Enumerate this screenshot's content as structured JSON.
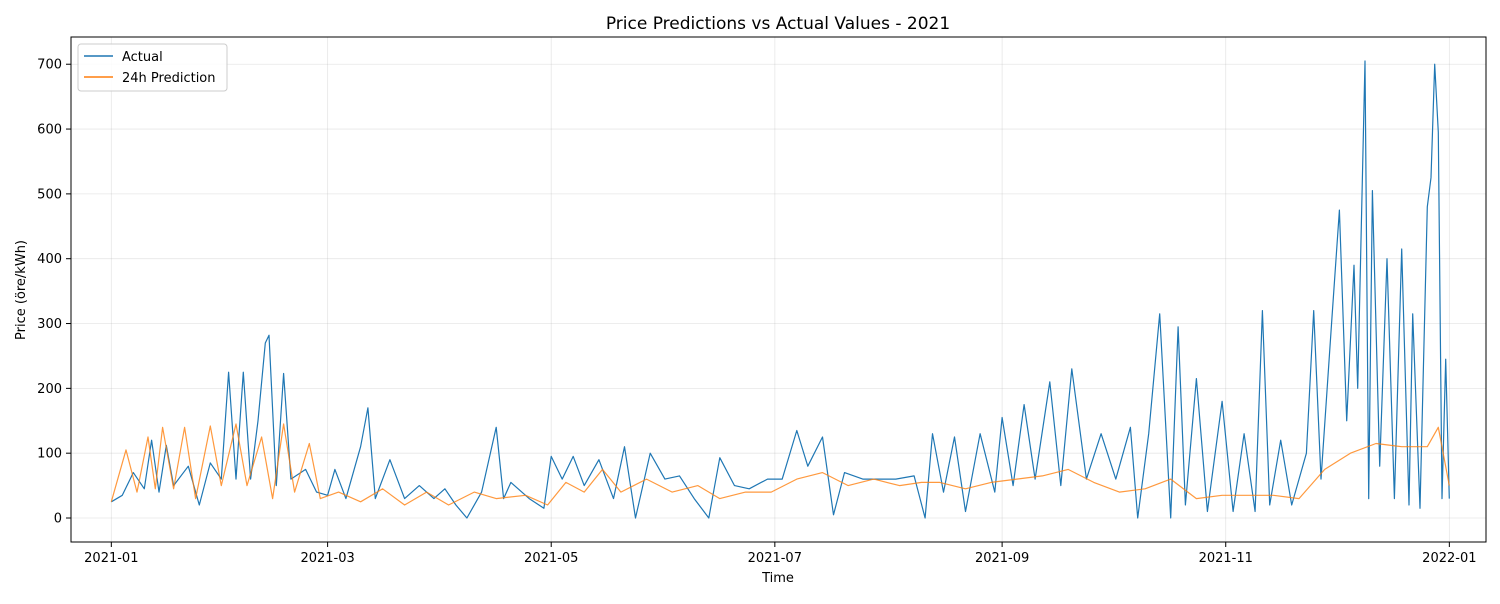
{
  "chart_data": {
    "type": "line",
    "title": "Price Predictions vs Actual Values - 2021",
    "xlabel": "Time",
    "ylabel": "Price (öre/kWh)",
    "x_range": [
      "2020-12-21",
      "2022-01-11"
    ],
    "ylim": [
      -37,
      742
    ],
    "x_ticks": [
      "2021-01",
      "2021-03",
      "2021-05",
      "2021-07",
      "2021-09",
      "2021-11",
      "2022-01"
    ],
    "y_ticks": [
      0,
      100,
      200,
      300,
      400,
      500,
      600,
      700
    ],
    "grid": true,
    "legend_position": "top-left",
    "series": [
      {
        "name": "Actual",
        "color": "#1f77b4",
        "points": [
          [
            "2021-01-01",
            25
          ],
          [
            "2021-01-04",
            35
          ],
          [
            "2021-01-07",
            70
          ],
          [
            "2021-01-10",
            45
          ],
          [
            "2021-01-12",
            120
          ],
          [
            "2021-01-14",
            40
          ],
          [
            "2021-01-16",
            112
          ],
          [
            "2021-01-18",
            50
          ],
          [
            "2021-01-22",
            80
          ],
          [
            "2021-01-25",
            20
          ],
          [
            "2021-01-28",
            85
          ],
          [
            "2021-01-31",
            60
          ],
          [
            "2021-02-02",
            225
          ],
          [
            "2021-02-04",
            60
          ],
          [
            "2021-02-06",
            225
          ],
          [
            "2021-02-08",
            60
          ],
          [
            "2021-02-10",
            150
          ],
          [
            "2021-02-12",
            270
          ],
          [
            "2021-02-13",
            282
          ],
          [
            "2021-02-15",
            50
          ],
          [
            "2021-02-17",
            223
          ],
          [
            "2021-02-19",
            60
          ],
          [
            "2021-02-23",
            75
          ],
          [
            "2021-02-26",
            40
          ],
          [
            "2021-03-01",
            35
          ],
          [
            "2021-03-03",
            75
          ],
          [
            "2021-03-06",
            30
          ],
          [
            "2021-03-10",
            110
          ],
          [
            "2021-03-12",
            170
          ],
          [
            "2021-03-14",
            30
          ],
          [
            "2021-03-18",
            90
          ],
          [
            "2021-03-22",
            30
          ],
          [
            "2021-03-26",
            50
          ],
          [
            "2021-03-30",
            30
          ],
          [
            "2021-04-02",
            45
          ],
          [
            "2021-04-05",
            20
          ],
          [
            "2021-04-08",
            0
          ],
          [
            "2021-04-12",
            40
          ],
          [
            "2021-04-16",
            140
          ],
          [
            "2021-04-18",
            30
          ],
          [
            "2021-04-20",
            55
          ],
          [
            "2021-04-25",
            30
          ],
          [
            "2021-04-29",
            15
          ],
          [
            "2021-05-01",
            95
          ],
          [
            "2021-05-04",
            60
          ],
          [
            "2021-05-07",
            95
          ],
          [
            "2021-05-10",
            50
          ],
          [
            "2021-05-14",
            90
          ],
          [
            "2021-05-18",
            30
          ],
          [
            "2021-05-21",
            110
          ],
          [
            "2021-05-24",
            0
          ],
          [
            "2021-05-28",
            100
          ],
          [
            "2021-06-01",
            60
          ],
          [
            "2021-06-05",
            65
          ],
          [
            "2021-06-09",
            30
          ],
          [
            "2021-06-13",
            0
          ],
          [
            "2021-06-16",
            93
          ],
          [
            "2021-06-20",
            50
          ],
          [
            "2021-06-24",
            45
          ],
          [
            "2021-06-29",
            60
          ],
          [
            "2021-07-03",
            60
          ],
          [
            "2021-07-07",
            135
          ],
          [
            "2021-07-10",
            80
          ],
          [
            "2021-07-14",
            125
          ],
          [
            "2021-07-17",
            5
          ],
          [
            "2021-07-20",
            70
          ],
          [
            "2021-07-25",
            60
          ],
          [
            "2021-07-30",
            60
          ],
          [
            "2021-08-03",
            60
          ],
          [
            "2021-08-08",
            65
          ],
          [
            "2021-08-11",
            0
          ],
          [
            "2021-08-13",
            130
          ],
          [
            "2021-08-16",
            40
          ],
          [
            "2021-08-19",
            125
          ],
          [
            "2021-08-22",
            10
          ],
          [
            "2021-08-26",
            130
          ],
          [
            "2021-08-30",
            40
          ],
          [
            "2021-09-01",
            155
          ],
          [
            "2021-09-04",
            50
          ],
          [
            "2021-09-07",
            175
          ],
          [
            "2021-09-10",
            60
          ],
          [
            "2021-09-14",
            210
          ],
          [
            "2021-09-17",
            50
          ],
          [
            "2021-09-20",
            230
          ],
          [
            "2021-09-24",
            60
          ],
          [
            "2021-09-28",
            130
          ],
          [
            "2021-10-02",
            60
          ],
          [
            "2021-10-06",
            140
          ],
          [
            "2021-10-08",
            0
          ],
          [
            "2021-10-11",
            130
          ],
          [
            "2021-10-14",
            315
          ],
          [
            "2021-10-17",
            0
          ],
          [
            "2021-10-19",
            295
          ],
          [
            "2021-10-21",
            20
          ],
          [
            "2021-10-24",
            215
          ],
          [
            "2021-10-27",
            10
          ],
          [
            "2021-10-31",
            180
          ],
          [
            "2021-11-03",
            10
          ],
          [
            "2021-11-06",
            130
          ],
          [
            "2021-11-09",
            10
          ],
          [
            "2021-11-11",
            320
          ],
          [
            "2021-11-13",
            20
          ],
          [
            "2021-11-16",
            120
          ],
          [
            "2021-11-19",
            20
          ],
          [
            "2021-11-23",
            100
          ],
          [
            "2021-11-25",
            320
          ],
          [
            "2021-11-27",
            60
          ],
          [
            "2021-11-30",
            310
          ],
          [
            "2021-12-02",
            475
          ],
          [
            "2021-12-04",
            150
          ],
          [
            "2021-12-06",
            390
          ],
          [
            "2021-12-07",
            200
          ],
          [
            "2021-12-09",
            705
          ],
          [
            "2021-12-10",
            30
          ],
          [
            "2021-12-11",
            505
          ],
          [
            "2021-12-13",
            80
          ],
          [
            "2021-12-15",
            400
          ],
          [
            "2021-12-17",
            30
          ],
          [
            "2021-12-19",
            415
          ],
          [
            "2021-12-21",
            20
          ],
          [
            "2021-12-22",
            315
          ],
          [
            "2021-12-24",
            15
          ],
          [
            "2021-12-26",
            480
          ],
          [
            "2021-12-27",
            525
          ],
          [
            "2021-12-28",
            700
          ],
          [
            "2021-12-29",
            595
          ],
          [
            "2021-12-30",
            30
          ],
          [
            "2021-12-31",
            245
          ],
          [
            "2022-01-01",
            30
          ]
        ]
      },
      {
        "name": "24h Prediction",
        "color": "#ff7f0e",
        "points": [
          [
            "2021-01-01",
            25
          ],
          [
            "2021-01-05",
            105
          ],
          [
            "2021-01-08",
            40
          ],
          [
            "2021-01-11",
            125
          ],
          [
            "2021-01-13",
            45
          ],
          [
            "2021-01-15",
            140
          ],
          [
            "2021-01-18",
            45
          ],
          [
            "2021-01-21",
            140
          ],
          [
            "2021-01-24",
            30
          ],
          [
            "2021-01-28",
            142
          ],
          [
            "2021-01-31",
            50
          ],
          [
            "2021-02-04",
            145
          ],
          [
            "2021-02-07",
            50
          ],
          [
            "2021-02-11",
            125
          ],
          [
            "2021-02-14",
            30
          ],
          [
            "2021-02-17",
            145
          ],
          [
            "2021-02-20",
            40
          ],
          [
            "2021-02-24",
            115
          ],
          [
            "2021-02-27",
            30
          ],
          [
            "2021-03-04",
            40
          ],
          [
            "2021-03-10",
            25
          ],
          [
            "2021-03-16",
            45
          ],
          [
            "2021-03-22",
            20
          ],
          [
            "2021-03-28",
            40
          ],
          [
            "2021-04-03",
            20
          ],
          [
            "2021-04-10",
            40
          ],
          [
            "2021-04-16",
            30
          ],
          [
            "2021-04-24",
            35
          ],
          [
            "2021-04-30",
            20
          ],
          [
            "2021-05-05",
            55
          ],
          [
            "2021-05-10",
            40
          ],
          [
            "2021-05-15",
            75
          ],
          [
            "2021-05-20",
            40
          ],
          [
            "2021-05-27",
            60
          ],
          [
            "2021-06-03",
            40
          ],
          [
            "2021-06-10",
            50
          ],
          [
            "2021-06-16",
            30
          ],
          [
            "2021-06-23",
            40
          ],
          [
            "2021-06-30",
            40
          ],
          [
            "2021-07-07",
            60
          ],
          [
            "2021-07-14",
            70
          ],
          [
            "2021-07-21",
            50
          ],
          [
            "2021-07-28",
            60
          ],
          [
            "2021-08-04",
            50
          ],
          [
            "2021-08-10",
            55
          ],
          [
            "2021-08-15",
            55
          ],
          [
            "2021-08-22",
            45
          ],
          [
            "2021-08-29",
            55
          ],
          [
            "2021-09-05",
            60
          ],
          [
            "2021-09-12",
            65
          ],
          [
            "2021-09-19",
            75
          ],
          [
            "2021-09-26",
            55
          ],
          [
            "2021-10-03",
            40
          ],
          [
            "2021-10-10",
            45
          ],
          [
            "2021-10-17",
            60
          ],
          [
            "2021-10-24",
            30
          ],
          [
            "2021-10-31",
            35
          ],
          [
            "2021-11-07",
            35
          ],
          [
            "2021-11-14",
            35
          ],
          [
            "2021-11-21",
            30
          ],
          [
            "2021-11-28",
            75
          ],
          [
            "2021-12-05",
            100
          ],
          [
            "2021-12-12",
            115
          ],
          [
            "2021-12-19",
            110
          ],
          [
            "2021-12-26",
            110
          ],
          [
            "2021-12-29",
            140
          ],
          [
            "2022-01-01",
            50
          ]
        ]
      }
    ]
  }
}
